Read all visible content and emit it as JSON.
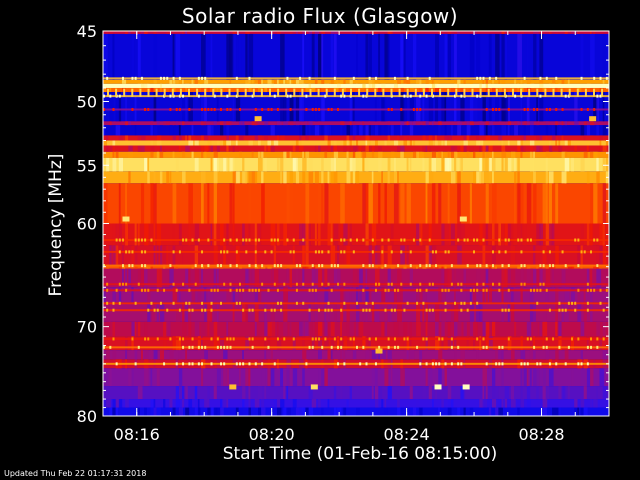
{
  "chart_data": {
    "type": "heatmap",
    "title": "Solar radio Flux (Glasgow)",
    "xlabel": "Start Time (01-Feb-16 08:15:00)",
    "ylabel": "Frequency [MHz]",
    "x_ticks": [
      "08:16",
      "08:20",
      "08:24",
      "08:28"
    ],
    "y_ticks": [
      45,
      50,
      55,
      60,
      70,
      80
    ],
    "ylim": [
      45,
      80
    ],
    "y_scale": "log",
    "x_range": [
      "08:15:00",
      "08:30:00"
    ],
    "colormap": [
      "#000050",
      "#0000c8",
      "#1a10ff",
      "#5010c8",
      "#901090",
      "#c80a3a",
      "#f21a00",
      "#ff6400",
      "#ffa000",
      "#ffe060",
      "#ffffc0"
    ],
    "spectral_bands": [
      {
        "from": 45.0,
        "to": 45.2,
        "level": 0.5
      },
      {
        "from": 45.2,
        "to": 48.4,
        "level": 0.13
      },
      {
        "from": 48.4,
        "to": 48.7,
        "level": 0.8
      },
      {
        "from": 48.7,
        "to": 49.0,
        "level": 1.0
      },
      {
        "from": 49.0,
        "to": 49.3,
        "level": 0.7
      },
      {
        "from": 49.3,
        "to": 51.5,
        "level": 0.13
      },
      {
        "from": 51.5,
        "to": 51.8,
        "level": 0.45
      },
      {
        "from": 51.8,
        "to": 52.6,
        "level": 0.12
      },
      {
        "from": 52.6,
        "to": 53.0,
        "level": 0.55
      },
      {
        "from": 53.0,
        "to": 53.4,
        "level": 0.85
      },
      {
        "from": 53.4,
        "to": 53.9,
        "level": 0.55
      },
      {
        "from": 53.9,
        "to": 54.4,
        "level": 0.78
      },
      {
        "from": 54.4,
        "to": 55.5,
        "level": 0.9
      },
      {
        "from": 55.5,
        "to": 56.5,
        "level": 0.82
      },
      {
        "from": 56.5,
        "to": 60.0,
        "level": 0.66
      },
      {
        "from": 60.0,
        "to": 62.0,
        "level": 0.56
      },
      {
        "from": 62.0,
        "to": 63.8,
        "level": 0.54
      },
      {
        "from": 63.8,
        "to": 64.2,
        "level": 0.68
      },
      {
        "from": 64.2,
        "to": 66.0,
        "level": 0.46
      },
      {
        "from": 66.0,
        "to": 67.5,
        "level": 0.42
      },
      {
        "from": 67.5,
        "to": 69.5,
        "level": 0.44
      },
      {
        "from": 69.5,
        "to": 71.0,
        "level": 0.48
      },
      {
        "from": 71.0,
        "to": 72.5,
        "level": 0.54
      },
      {
        "from": 72.5,
        "to": 73.5,
        "level": 0.42
      },
      {
        "from": 73.5,
        "to": 74.5,
        "level": 0.52
      },
      {
        "from": 74.5,
        "to": 76.5,
        "level": 0.38
      },
      {
        "from": 76.5,
        "to": 78.0,
        "level": 0.31
      },
      {
        "from": 78.0,
        "to": 79.0,
        "level": 0.25
      },
      {
        "from": 79.0,
        "to": 80.0,
        "level": 0.16
      }
    ],
    "spectral_lines": [
      {
        "freq": 48.3,
        "level": 0.85
      },
      {
        "freq": 49.6,
        "level": 0.85
      },
      {
        "freq": 50.6,
        "level": 0.4
      },
      {
        "freq": 61.5,
        "level": 0.62
      },
      {
        "freq": 62.6,
        "level": 0.62
      },
      {
        "freq": 63.9,
        "level": 0.72
      },
      {
        "freq": 65.7,
        "level": 0.56
      },
      {
        "freq": 66.3,
        "level": 0.56
      },
      {
        "freq": 67.6,
        "level": 0.62
      },
      {
        "freq": 68.3,
        "level": 0.62
      },
      {
        "freq": 71.3,
        "level": 0.58
      },
      {
        "freq": 72.2,
        "level": 0.72
      },
      {
        "freq": 74.0,
        "level": 0.78
      }
    ],
    "bursts": [
      {
        "time": "08:15:40",
        "freq": 59.6,
        "level": 0.92
      },
      {
        "time": "08:19:35",
        "freq": 51.3,
        "level": 0.85
      },
      {
        "time": "08:25:40",
        "freq": 59.6,
        "level": 0.92
      },
      {
        "time": "08:29:30",
        "freq": 51.3,
        "level": 0.85
      },
      {
        "time": "08:21:15",
        "freq": 76.6,
        "level": 0.9
      },
      {
        "time": "08:23:10",
        "freq": 72.6,
        "level": 0.85
      },
      {
        "time": "08:24:55",
        "freq": 76.6,
        "level": 1.0
      },
      {
        "time": "08:25:45",
        "freq": 76.6,
        "level": 1.0
      },
      {
        "time": "08:18:50",
        "freq": 76.6,
        "level": 0.85
      }
    ]
  },
  "footer": "Updated Thu Feb 22 01:17:31 2018"
}
